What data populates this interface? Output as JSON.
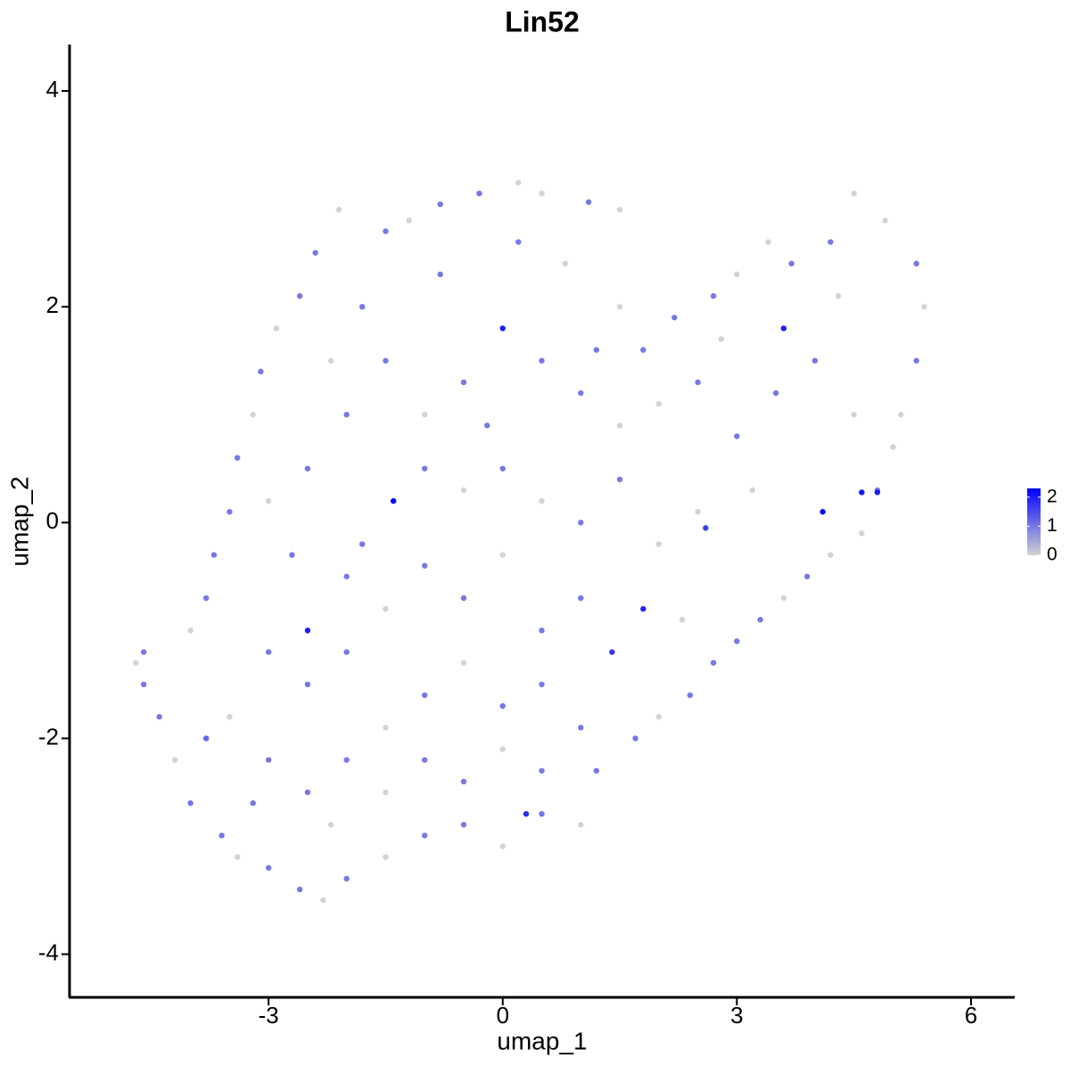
{
  "chart_data": {
    "type": "scatter",
    "title": "Lin52",
    "x_label": "umap_1",
    "y_label": "umap_2",
    "xlim": [
      -5.55,
      6.56
    ],
    "ylim": [
      -4.4,
      4.43
    ],
    "xticks": [
      -3,
      0,
      3,
      6
    ],
    "yticks": [
      -4,
      -2,
      0,
      2,
      4
    ],
    "color_low": "#d3d3d3",
    "color_high": "#0000ff",
    "clim": [
      0,
      2.3
    ],
    "cticks": [
      0,
      1,
      2
    ],
    "x": [
      -4.7,
      -4.6,
      -4.6,
      -4.4,
      -4.2,
      -4.0,
      -3.8,
      -3.6,
      -3.4,
      -3.0,
      -2.6,
      -2.3,
      -2.0,
      -1.5,
      -1.0,
      -0.5,
      0,
      0.3,
      0.5,
      1.0,
      1.2,
      1.7,
      2.0,
      2.4,
      2.7,
      3.0,
      3.3,
      3.6,
      3.9,
      4.2,
      4.6,
      4.8,
      4.6,
      4.8,
      4.1,
      5.0,
      5.1,
      5.3,
      5.4,
      5.3,
      4.9,
      4.5,
      4.2,
      3.7,
      3.4,
      3.0,
      2.7,
      2.2,
      1.8,
      1.5,
      1.5,
      1.1,
      0.5,
      0.2,
      -0.3,
      -0.8,
      -1.2,
      -1.5,
      -2.1,
      -2.4,
      -2.6,
      -2.9,
      -3.1,
      -3.2,
      -3.4,
      -3.5,
      -3.7,
      -3.8,
      -4.0,
      -2,
      -1.5,
      -1,
      -0.5,
      0,
      0.5,
      1,
      1.5,
      2,
      2.5,
      3,
      3.5,
      4,
      4.5,
      3.6,
      -1.4,
      -1,
      -0.5,
      0,
      0.5,
      1,
      1.5,
      2.0,
      2.5,
      2.6,
      3.2,
      -2.5,
      -2.7,
      -2,
      -1.5,
      -1,
      -0.5,
      0,
      0.5,
      1.0,
      1.4,
      1.8,
      2.3,
      -3,
      -2.5,
      -2,
      -1.5,
      -1,
      -0.5,
      0,
      0.5,
      1,
      -3.5,
      -3,
      -2.5,
      -2,
      -1.5,
      -1,
      -0.5,
      0,
      0.5,
      -3.2,
      -2.2,
      -2.5,
      -1.8,
      -0.8,
      0.2,
      0.8,
      -2.2,
      -0.2,
      1.2,
      2.8,
      4.3,
      -3.0,
      -1.8
    ],
    "y": [
      -1.3,
      -1.2,
      -1.5,
      -1.8,
      -2.2,
      -2.6,
      -2.0,
      -2.9,
      -3.1,
      -3.2,
      -3.4,
      -3.5,
      -3.3,
      -3.1,
      -2.9,
      -2.8,
      -3.0,
      -2.7,
      -2.7,
      -2.8,
      -2.3,
      -2.0,
      -1.8,
      -1.6,
      -1.3,
      -1.1,
      -0.9,
      -0.7,
      -0.5,
      -0.3,
      -0.1,
      0.3,
      0.28,
      0.28,
      0.1,
      0.7,
      1.0,
      1.5,
      2.0,
      2.4,
      2.8,
      3.05,
      2.6,
      2.4,
      2.6,
      2.3,
      2.1,
      1.9,
      1.6,
      2.0,
      2.9,
      2.97,
      3.05,
      3.15,
      3.05,
      2.95,
      2.8,
      2.7,
      2.9,
      2.5,
      2.1,
      1.8,
      1.4,
      1.0,
      0.6,
      0.1,
      -0.3,
      -0.7,
      -1.0,
      1,
      1.5,
      1,
      1.3,
      1.8,
      1.5,
      1.2,
      0.9,
      1.1,
      1.3,
      0.8,
      1.2,
      1.5,
      1.0,
      1.8,
      0.2,
      0.5,
      0.3,
      0.5,
      0.2,
      0,
      0.4,
      -0.2,
      0.1,
      -0.05,
      0.3,
      0.5,
      -0.3,
      -0.5,
      -0.8,
      -0.4,
      -0.7,
      -0.3,
      -1,
      -0.7,
      -1.2,
      -0.8,
      -0.9,
      -1.2,
      -1.5,
      -1.2,
      -1.9,
      -1.6,
      -1.3,
      -1.7,
      -1.5,
      -1.9,
      -1.8,
      -2.2,
      -2.5,
      -2.2,
      -2.5,
      -2.2,
      -2.4,
      -2.1,
      -2.3,
      -2.6,
      -2.8,
      -1.0,
      2.0,
      2.3,
      2.6,
      2.4,
      1.5,
      0.9,
      1.6,
      1.7,
      2.1,
      0.2,
      -0.2
    ],
    "values": [
      0,
      1,
      1,
      1,
      0,
      1,
      1.2,
      1,
      0,
      1,
      1,
      0,
      1,
      0,
      1,
      1,
      0,
      1.8,
      1,
      0,
      1,
      1,
      0,
      1,
      1,
      1,
      1,
      0,
      1,
      0,
      0,
      1,
      2.1,
      2.0,
      2.2,
      0,
      0,
      1,
      0,
      1,
      0,
      0,
      1,
      1,
      0,
      0,
      1,
      1,
      1,
      0,
      0,
      1,
      0,
      0,
      1,
      1,
      0,
      1,
      0,
      1,
      1,
      0,
      1,
      0,
      1,
      1,
      1,
      1,
      0,
      1,
      1,
      0,
      1,
      2.0,
      1,
      1,
      0,
      0,
      1,
      1,
      1,
      1,
      0,
      2.0,
      2.3,
      1,
      0,
      1,
      0,
      1,
      1,
      0,
      0,
      1.6,
      0,
      1,
      1,
      1,
      0,
      1,
      1,
      0,
      1,
      1,
      1.7,
      1.9,
      0,
      1,
      1,
      1,
      0,
      1,
      0,
      1,
      1,
      1,
      0,
      1,
      1,
      1,
      0,
      1,
      1,
      0,
      1,
      1,
      0,
      2.0,
      1,
      1,
      1,
      0,
      0,
      1,
      1,
      0,
      0,
      0,
      1
    ]
  }
}
